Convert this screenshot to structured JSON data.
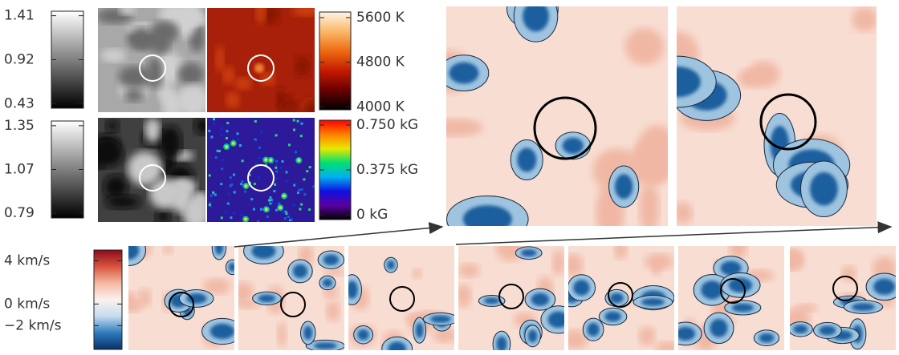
{
  "colorbars": [
    {
      "ylim": [
        0.38,
        1.46
      ],
      "yticks": [
        0.43,
        0.92,
        1.41
      ],
      "colors": [
        "#000000",
        "#ffffff"
      ]
    },
    {
      "ylim": [
        0.76,
        1.38
      ],
      "yticks": [
        0.79,
        1.07,
        1.35
      ],
      "colors": [
        "#000000",
        "#ffffff"
      ]
    },
    {
      "ylim": [
        3950,
        5700
      ],
      "yticks": [
        {
          "value": 4000,
          "label": "4000 K"
        },
        {
          "value": 4800,
          "label": "4800 K"
        },
        {
          "value": 5600,
          "label": "5600 K"
        }
      ],
      "colors": [
        "#000000",
        "#6a0000",
        "#c41a00",
        "#ee6a10",
        "#fbb868",
        "#fff3e6"
      ]
    },
    {
      "ylim": [
        -0.04,
        0.79
      ],
      "yticks": [
        {
          "value": 0,
          "label": "0 kG"
        },
        {
          "value": 0.375,
          "label": "0.375 kG"
        },
        {
          "value": 0.75,
          "label": "0.750 kG"
        }
      ],
      "colors": [
        "#000000",
        "#5a00a0",
        "#1010e0",
        "#00b0f0",
        "#00e070",
        "#e8e800",
        "#ff8000",
        "#ff0000"
      ]
    },
    {
      "ylim": [
        -4.2,
        5
      ],
      "yticks": [
        {
          "value": -2,
          "label": "−2 km/s"
        },
        {
          "value": 0,
          "label": "0 km/s"
        },
        {
          "value": 4,
          "label": "4 km/s"
        }
      ],
      "colors": [
        "#08306b",
        "#2f7bbd",
        "#c6dcef",
        "#fbf2ee",
        "#f5b8a0",
        "#d8553e",
        "#8b0a1a"
      ]
    }
  ]
}
